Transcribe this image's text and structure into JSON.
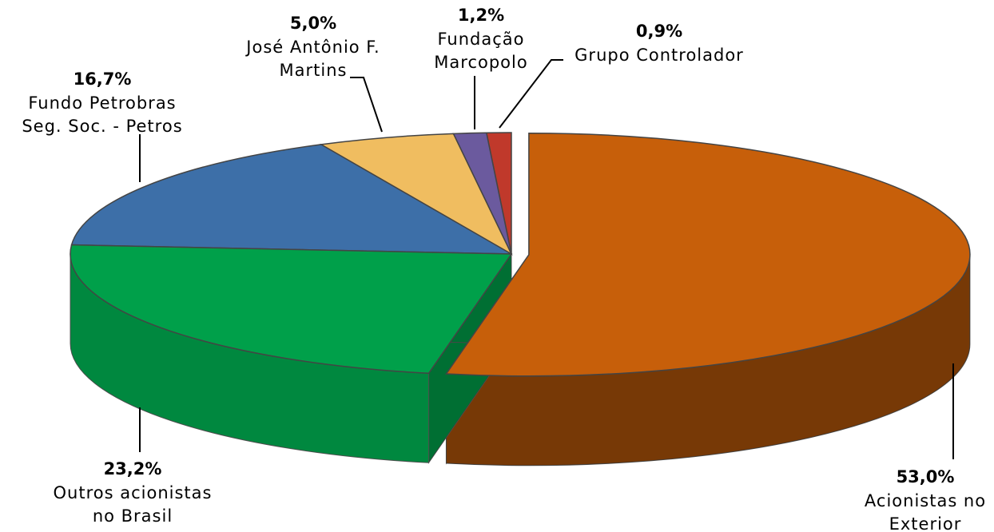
{
  "chart_data": {
    "type": "pie",
    "categories": [
      [
        "Acionistas no",
        "Exterior"
      ],
      [
        "Outros acionistas",
        "no Brasil"
      ],
      [
        "Fundo Petrobras",
        "Seg. Soc. - Petros"
      ],
      [
        "José Antônio F.",
        "Martins"
      ],
      [
        "Fundação",
        "Marcopolo"
      ],
      [
        "Grupo Controlador"
      ]
    ],
    "values": [
      53.0,
      23.2,
      16.7,
      5.0,
      1.2,
      0.9
    ],
    "value_labels": [
      "53,0%",
      "23,2%",
      "16,7%",
      "5,0%",
      "1,2%",
      "0,9%"
    ],
    "colors": [
      "#c75f0a",
      "#00a04a",
      "#3d6fa8",
      "#f0bd60",
      "#6b5a9e",
      "#c0392b"
    ]
  }
}
